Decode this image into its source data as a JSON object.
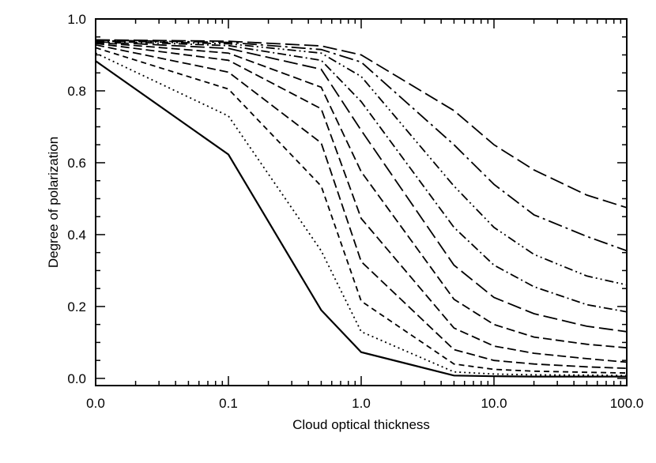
{
  "chart_data": {
    "type": "line",
    "xlabel": "Cloud optical thickness",
    "ylabel": "Degree of polarization",
    "x": [
      0.0,
      0.1,
      0.5,
      1.0,
      5.0,
      10.0,
      20.0,
      50.0,
      100.0
    ],
    "x_ticks": [
      {
        "value": 0.0,
        "label": "0.0"
      },
      {
        "value": 0.1,
        "label": "0.1"
      },
      {
        "value": 1.0,
        "label": "1.0"
      },
      {
        "value": 10.0,
        "label": "10.0"
      },
      {
        "value": 100.0,
        "label": "100.0"
      }
    ],
    "y_ticks": [
      {
        "value": 0.0,
        "label": "0.0"
      },
      {
        "value": 0.2,
        "label": "0.2"
      },
      {
        "value": 0.4,
        "label": "0.4"
      },
      {
        "value": 0.6,
        "label": "0.6"
      },
      {
        "value": 0.8,
        "label": "0.8"
      },
      {
        "value": 1.0,
        "label": "1.0"
      }
    ],
    "xlim": [
      0.0,
      100.0
    ],
    "ylim": [
      -0.02,
      1.0
    ],
    "x_scale": "log-like with 0 at left edge",
    "grid": false,
    "legend": "none",
    "series": [
      {
        "style": "solid",
        "values": [
          0.883,
          0.623,
          0.19,
          0.073,
          0.008,
          0.006,
          0.005,
          0.005,
          0.005
        ]
      },
      {
        "style": "dotted",
        "values": [
          0.905,
          0.73,
          0.355,
          0.13,
          0.018,
          0.012,
          0.01,
          0.009,
          0.008
        ]
      },
      {
        "style": "short-dash",
        "values": [
          0.92,
          0.805,
          0.535,
          0.215,
          0.04,
          0.025,
          0.02,
          0.017,
          0.015
        ]
      },
      {
        "style": "dash",
        "values": [
          0.928,
          0.852,
          0.655,
          0.325,
          0.08,
          0.05,
          0.04,
          0.032,
          0.028
        ]
      },
      {
        "style": "dash",
        "values": [
          0.932,
          0.885,
          0.75,
          0.445,
          0.14,
          0.09,
          0.07,
          0.055,
          0.045
        ]
      },
      {
        "style": "dash",
        "values": [
          0.935,
          0.905,
          0.81,
          0.575,
          0.22,
          0.15,
          0.115,
          0.095,
          0.085
        ]
      },
      {
        "style": "long-dash",
        "values": [
          0.937,
          0.918,
          0.86,
          0.69,
          0.315,
          0.225,
          0.18,
          0.145,
          0.13
        ]
      },
      {
        "style": "dash-dot",
        "values": [
          0.939,
          0.926,
          0.885,
          0.77,
          0.42,
          0.315,
          0.255,
          0.205,
          0.185
        ]
      },
      {
        "style": "dash-dot-dot",
        "values": [
          0.94,
          0.931,
          0.905,
          0.84,
          0.535,
          0.42,
          0.345,
          0.285,
          0.26
        ]
      },
      {
        "style": "long-dash-dot",
        "values": [
          0.941,
          0.935,
          0.915,
          0.88,
          0.65,
          0.54,
          0.455,
          0.395,
          0.355
        ]
      },
      {
        "style": "long-dash",
        "values": [
          0.942,
          0.938,
          0.925,
          0.9,
          0.745,
          0.65,
          0.58,
          0.51,
          0.475
        ]
      }
    ]
  }
}
